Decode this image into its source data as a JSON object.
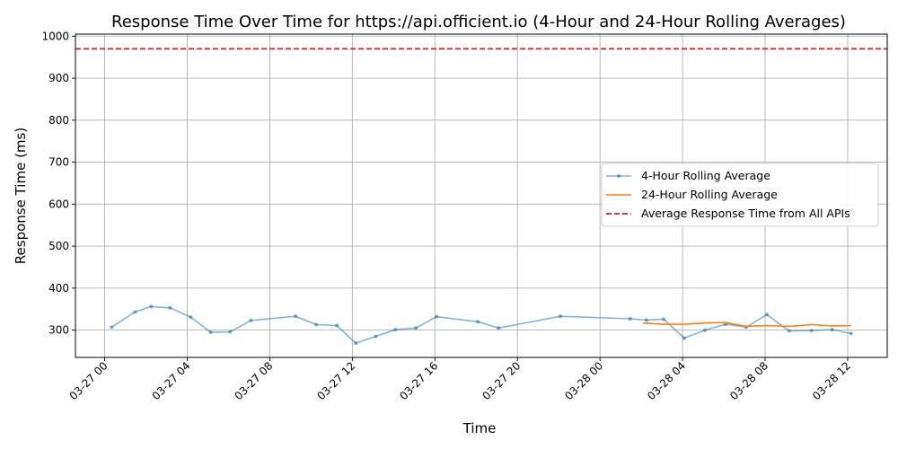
{
  "chart_data": {
    "type": "line",
    "title": "Response Time Over Time for https://api.officient.io (4-Hour and 24-Hour Rolling Averages)",
    "xlabel": "Time",
    "ylabel": "Response Time (ms)",
    "x_ticks": [
      "03-27 00",
      "03-27 04",
      "03-27 08",
      "03-27 12",
      "03-27 16",
      "03-27 20",
      "03-28 00",
      "03-28 04",
      "03-28 08",
      "03-28 12"
    ],
    "x_range": [
      "2024-03-26 22:35",
      "2024-03-28 13:55"
    ],
    "ylim": [
      235,
      1005
    ],
    "y_ticks": [
      300,
      400,
      500,
      600,
      700,
      800,
      900,
      1000
    ],
    "grid": true,
    "legend_position": "center-right",
    "series": [
      {
        "name": "4-Hour Rolling Average",
        "color": "#1f77b4",
        "style": "solid-markers",
        "points": [
          {
            "t": "2024-03-27 00:20",
            "v": 307
          },
          {
            "t": "2024-03-27 01:28",
            "v": 343
          },
          {
            "t": "2024-03-27 02:15",
            "v": 356
          },
          {
            "t": "2024-03-27 03:10",
            "v": 353
          },
          {
            "t": "2024-03-27 04:10",
            "v": 331
          },
          {
            "t": "2024-03-27 05:08",
            "v": 295
          },
          {
            "t": "2024-03-27 06:05",
            "v": 296
          },
          {
            "t": "2024-03-27 07:05",
            "v": 323
          },
          {
            "t": "2024-03-27 09:15",
            "v": 333
          },
          {
            "t": "2024-03-27 10:15",
            "v": 313
          },
          {
            "t": "2024-03-27 11:15",
            "v": 311
          },
          {
            "t": "2024-03-27 12:10",
            "v": 269
          },
          {
            "t": "2024-03-27 13:08",
            "v": 285
          },
          {
            "t": "2024-03-27 14:05",
            "v": 301
          },
          {
            "t": "2024-03-27 15:05",
            "v": 305
          },
          {
            "t": "2024-03-27 16:05",
            "v": 332
          },
          {
            "t": "2024-03-27 18:05",
            "v": 320
          },
          {
            "t": "2024-03-27 19:05",
            "v": 305
          },
          {
            "t": "2024-03-27 22:05",
            "v": 333
          },
          {
            "t": "2024-03-28 01:28",
            "v": 327
          },
          {
            "t": "2024-03-28 02:15",
            "v": 324
          },
          {
            "t": "2024-03-28 03:05",
            "v": 326
          },
          {
            "t": "2024-03-28 04:05",
            "v": 281
          },
          {
            "t": "2024-03-28 05:05",
            "v": 300
          },
          {
            "t": "2024-03-28 06:05",
            "v": 314
          },
          {
            "t": "2024-03-28 07:05",
            "v": 307
          },
          {
            "t": "2024-03-28 08:05",
            "v": 337
          },
          {
            "t": "2024-03-28 09:10",
            "v": 298
          },
          {
            "t": "2024-03-28 10:15",
            "v": 299
          },
          {
            "t": "2024-03-28 11:15",
            "v": 301
          },
          {
            "t": "2024-03-28 12:10",
            "v": 292
          }
        ]
      },
      {
        "name": "24-Hour Rolling Average",
        "color": "#ff7f0e",
        "style": "solid",
        "points": [
          {
            "t": "2024-03-28 02:05",
            "v": 317
          },
          {
            "t": "2024-03-28 03:05",
            "v": 314
          },
          {
            "t": "2024-03-28 04:05",
            "v": 314
          },
          {
            "t": "2024-03-28 05:05",
            "v": 317
          },
          {
            "t": "2024-03-28 06:05",
            "v": 318
          },
          {
            "t": "2024-03-28 07:05",
            "v": 309
          },
          {
            "t": "2024-03-28 08:05",
            "v": 311
          },
          {
            "t": "2024-03-28 09:10",
            "v": 309
          },
          {
            "t": "2024-03-28 10:15",
            "v": 313
          },
          {
            "t": "2024-03-28 11:15",
            "v": 310
          },
          {
            "t": "2024-03-28 12:10",
            "v": 311
          }
        ]
      },
      {
        "name": "Average Response Time from All APIs",
        "color": "#e41a1c",
        "style": "dashed",
        "value": 970
      }
    ]
  }
}
